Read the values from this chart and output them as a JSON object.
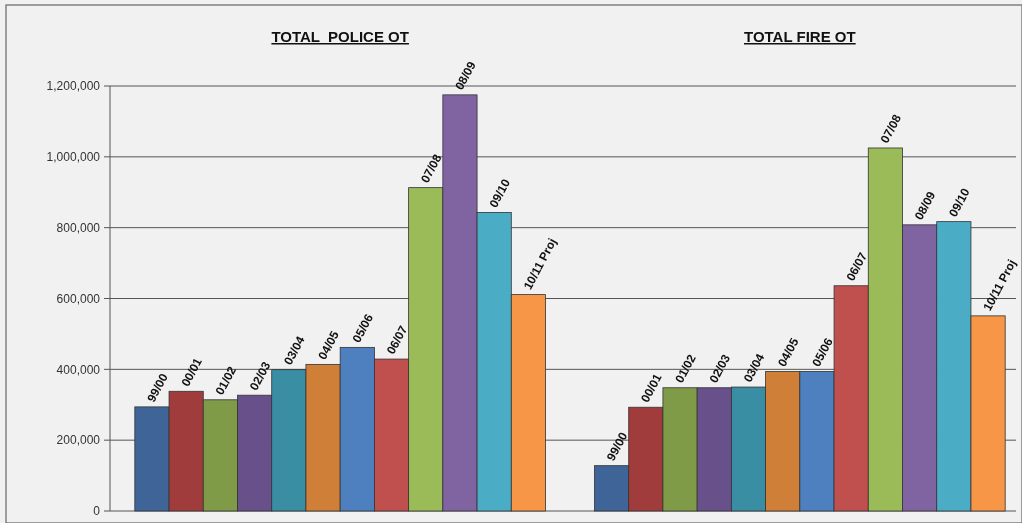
{
  "chart_data": {
    "type": "bar",
    "categories": [
      "TOTAL  POLICE OT",
      "TOTAL FIRE OT"
    ],
    "series": [
      {
        "name": "99/00",
        "color": "#3f6598",
        "values": [
          294000,
          128000
        ]
      },
      {
        "name": "00/01",
        "color": "#a03c3c",
        "values": [
          338000,
          293000
        ]
      },
      {
        "name": "01/02",
        "color": "#7f9b47",
        "values": [
          314000,
          348000
        ]
      },
      {
        "name": "02/03",
        "color": "#68508a",
        "values": [
          327000,
          348000
        ]
      },
      {
        "name": "03/04",
        "color": "#3a8ea3",
        "values": [
          399000,
          350000
        ]
      },
      {
        "name": "04/05",
        "color": "#d07f38",
        "values": [
          414000,
          394000
        ]
      },
      {
        "name": "05/06",
        "color": "#4e80c0",
        "values": [
          462000,
          394000
        ]
      },
      {
        "name": "06/07",
        "color": "#c0504d",
        "values": [
          429000,
          636000
        ]
      },
      {
        "name": "07/08",
        "color": "#9bbb59",
        "values": [
          913000,
          1025000
        ]
      },
      {
        "name": "08/09",
        "color": "#8064a2",
        "values": [
          1175000,
          808000
        ]
      },
      {
        "name": "09/10",
        "color": "#4bacc6",
        "values": [
          843000,
          817000
        ]
      },
      {
        "name": "10/11 Proj",
        "color": "#f79646",
        "values": [
          611000,
          551000
        ]
      }
    ],
    "ylim": [
      0,
      1200000
    ],
    "yticks": [
      {
        "value": 0,
        "label": "0"
      },
      {
        "value": 200000,
        "label": "200,000"
      },
      {
        "value": 400000,
        "label": "400,000"
      },
      {
        "value": 600000,
        "label": "600,000"
      },
      {
        "value": 800000,
        "label": "800,000"
      },
      {
        "value": 1000000,
        "label": "1,000,000"
      },
      {
        "value": 1200000,
        "label": "1,200,000"
      }
    ],
    "grid": "y"
  }
}
